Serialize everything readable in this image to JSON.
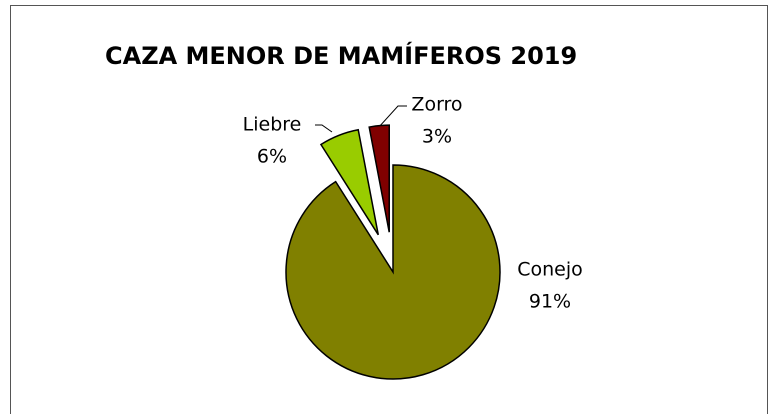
{
  "chart_data": {
    "type": "pie",
    "title": "CAZA MENOR DE MAMÍFEROS 2019",
    "categories": [
      "Conejo",
      "Liebre",
      "Zorro"
    ],
    "values": [
      91,
      6,
      3
    ],
    "value_labels": [
      "91%",
      "6%",
      "3%"
    ],
    "colors": [
      "#808000",
      "#99cc00",
      "#800000"
    ]
  }
}
